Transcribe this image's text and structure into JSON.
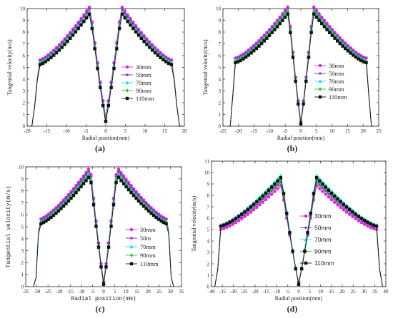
{
  "chart_data": [
    {
      "type": "line",
      "caption": "(a)",
      "xlabel": "Radial position(mm)",
      "ylabel": "Tangential velocity(m/s)",
      "xlim": [
        -20,
        20
      ],
      "ylim": [
        0,
        10
      ],
      "xticks": [
        -20,
        -15,
        -10,
        -5,
        0,
        5,
        10,
        15,
        20
      ],
      "yticks": [
        0,
        1,
        2,
        3,
        4,
        5,
        6,
        7,
        8,
        9,
        10
      ],
      "legend": "right-center",
      "wall": 17,
      "peak_pos": 4,
      "series": [
        {
          "name": "30mm",
          "color": "#dd22dd",
          "marker": "circle",
          "values": {
            "wall_drop": 5.6,
            "peak": 10.2,
            "center": 0.8
          }
        },
        {
          "name": "50mm",
          "color": "#7a22cc",
          "marker": "star",
          "values": {
            "wall_drop": 5.5,
            "peak": 10.0,
            "center": 0.7
          }
        },
        {
          "name": "70mm",
          "color": "#22dddd",
          "marker": "triangle",
          "values": {
            "wall_drop": 5.4,
            "peak": 9.8,
            "center": 0.6
          }
        },
        {
          "name": "90mm",
          "color": "#22cc22",
          "marker": "diamond",
          "values": {
            "wall_drop": 5.3,
            "peak": 9.7,
            "center": 0.5
          }
        },
        {
          "name": "110mm",
          "color": "#111111",
          "marker": "square",
          "values": {
            "wall_drop": 5.2,
            "peak": 9.6,
            "center": 0.4
          }
        }
      ]
    },
    {
      "type": "line",
      "caption": "(b)",
      "xlabel": "Radial position(mm)",
      "ylabel": "Tangential velocity(m/s)",
      "xlim": [
        -25,
        25
      ],
      "ylim": [
        0,
        10
      ],
      "xticks": [
        -25,
        -20,
        -15,
        -10,
        -5,
        0,
        5,
        10,
        15,
        20,
        25
      ],
      "yticks": [
        0,
        1,
        2,
        3,
        4,
        5,
        6,
        7,
        8,
        9,
        10
      ],
      "legend": "right-center",
      "wall": 21,
      "peak_pos": 4,
      "series": [
        {
          "name": "30mm",
          "color": "#dd22dd",
          "marker": "circle",
          "values": {
            "wall_drop": 5.8,
            "peak": 10.2,
            "center": 0.4
          }
        },
        {
          "name": "50mm",
          "color": "#7a22cc",
          "marker": "star",
          "values": {
            "wall_drop": 5.7,
            "peak": 10.0,
            "center": 0.35
          }
        },
        {
          "name": "70mm",
          "color": "#22dddd",
          "marker": "triangle",
          "values": {
            "wall_drop": 5.6,
            "peak": 9.9,
            "center": 0.3
          }
        },
        {
          "name": "90mm",
          "color": "#22cc22",
          "marker": "diamond",
          "values": {
            "wall_drop": 5.5,
            "peak": 9.8,
            "center": 0.25
          }
        },
        {
          "name": "110mm",
          "color": "#111111",
          "marker": "square",
          "values": {
            "wall_drop": 5.4,
            "peak": 9.6,
            "center": 0.2
          }
        }
      ]
    },
    {
      "type": "line",
      "caption": "(c)",
      "xlabel": "Radial position(mm)",
      "ylabel": "Tangential velocity(m/s)",
      "xlim": [
        -35,
        35
      ],
      "ylim": [
        0,
        10
      ],
      "xticks": [
        -35,
        -30,
        -25,
        -20,
        -15,
        -10,
        -5,
        0,
        5,
        10,
        15,
        20,
        25,
        30,
        35
      ],
      "yticks": [
        0,
        1,
        2,
        3,
        4,
        5,
        6,
        7,
        8,
        9,
        10
      ],
      "legend": "right-center",
      "wall": 29,
      "peak_pos": 6,
      "series": [
        {
          "name": "30mm",
          "color": "#dd22dd",
          "marker": "circle",
          "values": {
            "wall_drop": 5.6,
            "peak": 10.0,
            "center": 0.4
          }
        },
        {
          "name": "50m",
          "color": "#7a22cc",
          "marker": "star",
          "values": {
            "wall_drop": 5.5,
            "peak": 9.8,
            "center": 0.35
          }
        },
        {
          "name": "70mm",
          "color": "#22dddd",
          "marker": "triangle",
          "values": {
            "wall_drop": 5.4,
            "peak": 9.6,
            "center": 0.3
          }
        },
        {
          "name": "90mm",
          "color": "#22cc22",
          "marker": "diamond",
          "values": {
            "wall_drop": 5.3,
            "peak": 9.5,
            "center": 0.25
          }
        },
        {
          "name": "110mm",
          "color": "#111111",
          "marker": "square",
          "values": {
            "wall_drop": 5.2,
            "peak": 9.3,
            "center": 0.2
          }
        }
      ]
    },
    {
      "type": "line",
      "caption": "(d)",
      "xlabel": "Radial position(mm)",
      "ylabel": "Tangential velocity(m/s)",
      "xlim": [
        -40,
        40
      ],
      "ylim": [
        0,
        11
      ],
      "xticks": [
        -40,
        -35,
        -30,
        -25,
        -20,
        -15,
        -10,
        -5,
        0,
        5,
        10,
        15,
        20,
        25,
        30,
        35,
        40
      ],
      "yticks": [
        0,
        1,
        2,
        3,
        4,
        5,
        6,
        7,
        8,
        9,
        10,
        11
      ],
      "legend": "right-center",
      "wall": 36,
      "peak_pos": 8,
      "series": [
        {
          "name": "30mm",
          "color": "#dd22dd",
          "marker": "circle",
          "values": {
            "wall_drop": 5.0,
            "peak": 8.9,
            "center": 0.4
          }
        },
        {
          "name": "50mm",
          "color": "#7a22cc",
          "marker": "star",
          "values": {
            "wall_drop": 5.2,
            "peak": 9.2,
            "center": 0.35
          }
        },
        {
          "name": "70mm",
          "color": "#22dddd",
          "marker": "triangle",
          "values": {
            "wall_drop": 5.4,
            "peak": 9.8,
            "center": 0.3
          }
        },
        {
          "name": "90mm",
          "color": "#22cc22",
          "marker": "diamond",
          "values": {
            "wall_drop": 5.3,
            "peak": 9.4,
            "center": 0.25
          }
        },
        {
          "name": "110mm",
          "color": "#111111",
          "marker": "square",
          "values": {
            "wall_drop": 5.3,
            "peak": 9.6,
            "center": 0.2
          }
        }
      ]
    }
  ]
}
